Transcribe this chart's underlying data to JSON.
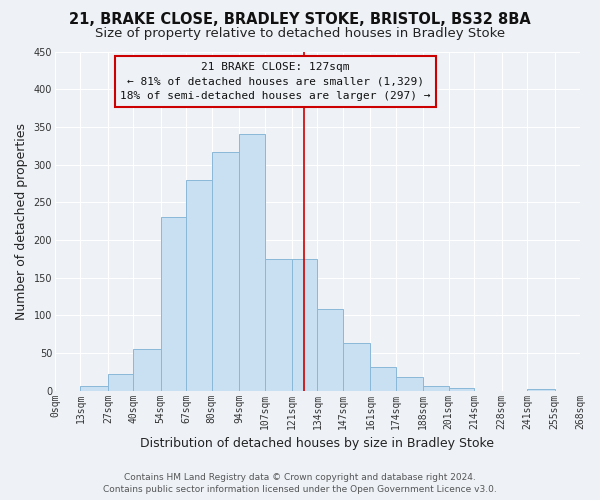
{
  "title": "21, BRAKE CLOSE, BRADLEY STOKE, BRISTOL, BS32 8BA",
  "subtitle": "Size of property relative to detached houses in Bradley Stoke",
  "xlabel": "Distribution of detached houses by size in Bradley Stoke",
  "ylabel": "Number of detached properties",
  "bar_edges": [
    0,
    13,
    27,
    40,
    54,
    67,
    80,
    94,
    107,
    121,
    134,
    147,
    161,
    174,
    188,
    201,
    214,
    228,
    241,
    255,
    268
  ],
  "bar_heights": [
    0,
    6,
    22,
    55,
    230,
    280,
    317,
    340,
    175,
    175,
    108,
    63,
    32,
    18,
    6,
    3,
    0,
    0,
    2,
    0
  ],
  "bar_color": "#c9dff2",
  "bar_edge_color": "#8ab8d8",
  "vline_x": 127,
  "vline_color": "#cc0000",
  "annotation_title": "21 BRAKE CLOSE: 127sqm",
  "annotation_line1": "← 81% of detached houses are smaller (1,329)",
  "annotation_line2": "18% of semi-detached houses are larger (297) →",
  "annotation_box_edgecolor": "#cc0000",
  "xlim": [
    0,
    268
  ],
  "ylim": [
    0,
    450
  ],
  "xtick_labels": [
    "0sqm",
    "13sqm",
    "27sqm",
    "40sqm",
    "54sqm",
    "67sqm",
    "80sqm",
    "94sqm",
    "107sqm",
    "121sqm",
    "134sqm",
    "147sqm",
    "161sqm",
    "174sqm",
    "188sqm",
    "201sqm",
    "214sqm",
    "228sqm",
    "241sqm",
    "255sqm",
    "268sqm"
  ],
  "xtick_positions": [
    0,
    13,
    27,
    40,
    54,
    67,
    80,
    94,
    107,
    121,
    134,
    147,
    161,
    174,
    188,
    201,
    214,
    228,
    241,
    255,
    268
  ],
  "ytick_positions": [
    0,
    50,
    100,
    150,
    200,
    250,
    300,
    350,
    400,
    450
  ],
  "footer_line1": "Contains HM Land Registry data © Crown copyright and database right 2024.",
  "footer_line2": "Contains public sector information licensed under the Open Government Licence v3.0.",
  "background_color": "#eef2f7",
  "grid_color": "#ffffff",
  "title_fontsize": 10.5,
  "subtitle_fontsize": 9.5,
  "axis_label_fontsize": 9,
  "tick_fontsize": 7,
  "annotation_fontsize": 8,
  "footer_fontsize": 6.5
}
